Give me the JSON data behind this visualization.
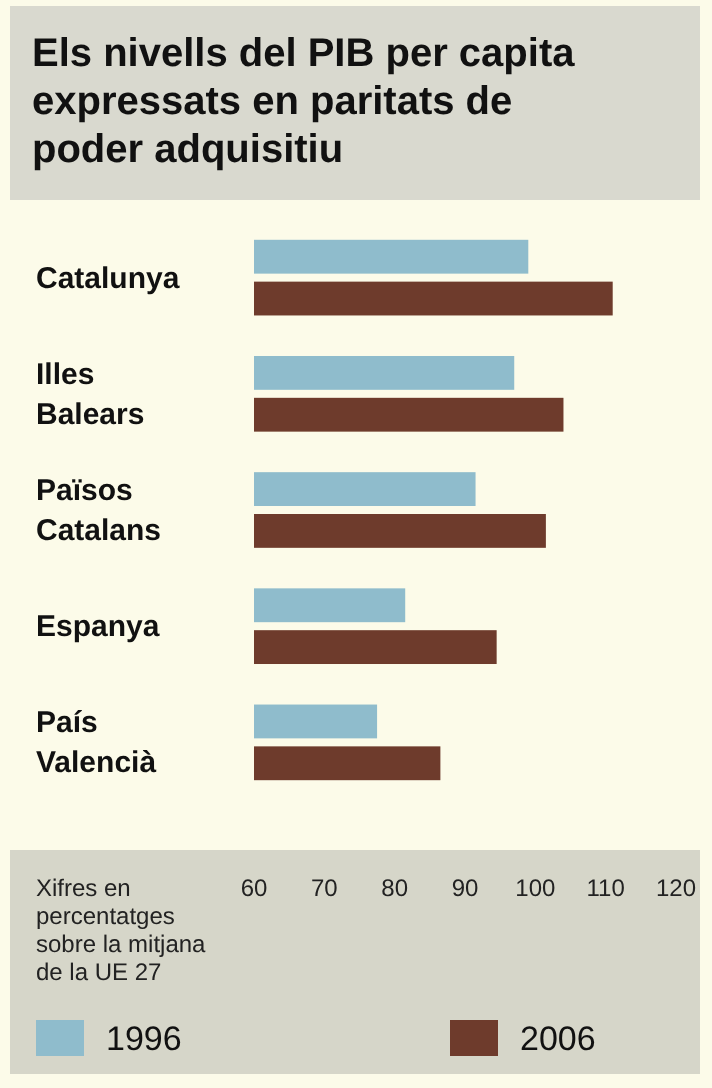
{
  "chart_data": {
    "type": "bar",
    "orientation": "horizontal",
    "title": "Els nivells del PIB per capita expressats en paritats de poder adquisitiu",
    "categories": [
      "Catalunya",
      "Illes Balears",
      "Països Catalans",
      "Espanya",
      "País Valencià"
    ],
    "series": [
      {
        "name": "1996",
        "color": "#8fbccc",
        "values": [
          99,
          97,
          91.5,
          81.5,
          77.5
        ]
      },
      {
        "name": "2006",
        "color": "#6e3b2c",
        "values": [
          111,
          104,
          101.5,
          94.5,
          86.5
        ]
      }
    ],
    "xlim": [
      60,
      120
    ],
    "xticks": [
      60,
      70,
      80,
      90,
      100,
      110,
      120
    ],
    "annotations": [
      "Xifres en percentatges sobre la mitjana de la UE 27"
    ],
    "legend": "bottom",
    "grid": false
  }
}
